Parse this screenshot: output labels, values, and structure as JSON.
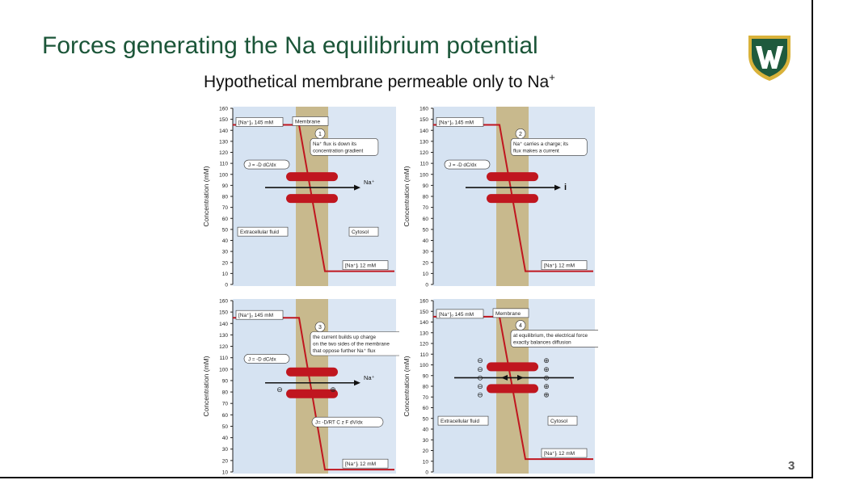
{
  "slide": {
    "title": "Forces generating the Na equilibrium potential",
    "subtitle": "Hypothetical membrane permeable only to Na",
    "subtitle_sup": "+",
    "page_number": "3"
  },
  "logo": {
    "name": "wayne-state-shield",
    "colors": {
      "green": "#1f5a3d",
      "gold": "#d9b23a",
      "white": "#ffffff"
    }
  },
  "colors": {
    "red": "#c0161f",
    "extracellular": "#d6e3f2",
    "membrane": "#c8b98d",
    "cytosol": "#dbe6f3"
  },
  "panels": [
    {
      "y_axis_label": "Concentration (mM)",
      "y_ticks": [
        "160",
        "150",
        "140",
        "130",
        "120",
        "110",
        "100",
        "90",
        "80",
        "70",
        "60",
        "50",
        "40",
        "30",
        "20",
        "10",
        "0"
      ],
      "conc_out_label": "[Na⁺]ₒ 145 mM",
      "conc_in_label": "[Na⁺]ᵢ 12 mM",
      "membrane_label": "Membrane",
      "step_number": "1",
      "callout_lines": [
        "Na⁺ flux is down its",
        "concentration gradient"
      ],
      "flux_eq": "J = -D dC/dx",
      "arrow_label": "Na⁺",
      "extracellular_label": "Extracellular fluid",
      "cytosol_label": "Cytosol"
    },
    {
      "y_axis_label": "Concentration (mM)",
      "y_ticks": [
        "160",
        "150",
        "140",
        "130",
        "120",
        "110",
        "100",
        "90",
        "80",
        "70",
        "60",
        "50",
        "40",
        "30",
        "20",
        "10",
        "0"
      ],
      "conc_out_label": "[Na⁺]ₒ 145 mM",
      "conc_in_label": "[Na⁺]ᵢ 12 mM",
      "step_number": "2",
      "callout_lines": [
        "Na⁺ carries a charge; its",
        "flux makes a current"
      ],
      "flux_eq": "J = -D dC/dx",
      "arrow_label": "i"
    },
    {
      "y_axis_label": "Concentration (mM)",
      "y_ticks": [
        "160",
        "150",
        "140",
        "130",
        "120",
        "110",
        "100",
        "90",
        "80",
        "70",
        "60",
        "50",
        "40",
        "30",
        "20",
        "10"
      ],
      "conc_out_label": "[Na⁺]ₒ 145 mM",
      "conc_in_label": "[Na⁺]ᵢ 12 mM",
      "step_number": "3",
      "callout_lines": [
        "the current builds up charge",
        "on the two sides of the membrane",
        "that oppose further Na⁺ flux"
      ],
      "flux_eq": "J = -D dC/dx",
      "flux_eq2": "J= -D/RT  C z F dV/dx",
      "arrow_label": "Na⁺",
      "minus_sign": "⊖",
      "plus_sign": "⊕"
    },
    {
      "y_axis_label": "Concentration (mM)",
      "y_ticks": [
        "160",
        "150",
        "140",
        "130",
        "120",
        "110",
        "100",
        "90",
        "80",
        "70",
        "60",
        "50",
        "40",
        "30",
        "20",
        "10",
        "0"
      ],
      "conc_out_label": "[Na⁺]ₒ 145 mM",
      "conc_in_label": "[Na⁺]ᵢ 12 mM",
      "membrane_label": "Membrane",
      "step_number": "4",
      "callout_lines": [
        "at equilibrium, the electrical force",
        "exactly balances diffusion"
      ],
      "extracellular_label": "Extracellular fluid",
      "cytosol_label": "Cytosol",
      "minus_sign": "⊖",
      "plus_sign": "⊕"
    }
  ]
}
